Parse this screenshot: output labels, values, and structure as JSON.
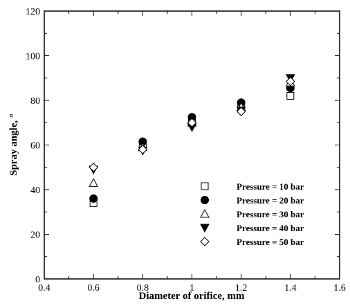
{
  "chart_data": {
    "type": "scatter",
    "xlabel": "Diameter of orifice, mm",
    "ylabel": "Spray angle, °",
    "xlim": [
      0.4,
      1.6
    ],
    "ylim": [
      0,
      120
    ],
    "xticks": [
      0.4,
      0.6,
      0.8,
      1.0,
      1.2,
      1.4,
      1.6
    ],
    "xtick_labels": [
      "0.4",
      "0.6",
      "0.8",
      "1",
      "1.2",
      "1.4",
      "1.6"
    ],
    "yticks": [
      0,
      20,
      40,
      60,
      80,
      100,
      120
    ],
    "ytick_labels": [
      "0",
      "20",
      "40",
      "60",
      "80",
      "100",
      "120"
    ],
    "grid": false,
    "legend_position": "bottom-right",
    "series": [
      {
        "name": "Pressure = 10 bar",
        "marker": "square-open",
        "x": [
          0.6,
          0.8,
          1.0,
          1.2,
          1.4
        ],
        "y": [
          34,
          60,
          71,
          78,
          82
        ]
      },
      {
        "name": "Pressure = 20 bar",
        "marker": "circle-filled",
        "x": [
          0.6,
          0.8,
          1.0,
          1.2,
          1.4
        ],
        "y": [
          36,
          61.5,
          72.5,
          79,
          85.5
        ]
      },
      {
        "name": "Pressure = 30 bar",
        "marker": "triangle-up-open",
        "x": [
          0.6,
          0.8,
          1.0,
          1.2,
          1.4
        ],
        "y": [
          43,
          59,
          70,
          77,
          88
        ]
      },
      {
        "name": "Pressure = 40 bar",
        "marker": "triangle-down-filled",
        "x": [
          0.6,
          0.8,
          1.0,
          1.2,
          1.4
        ],
        "y": [
          49,
          57.5,
          68,
          75.5,
          90
        ]
      },
      {
        "name": "Pressure = 50 bar",
        "marker": "diamond-open",
        "x": [
          0.6,
          0.8,
          1.0,
          1.2,
          1.4
        ],
        "y": [
          50,
          58,
          70,
          75,
          88.5
        ]
      }
    ]
  }
}
